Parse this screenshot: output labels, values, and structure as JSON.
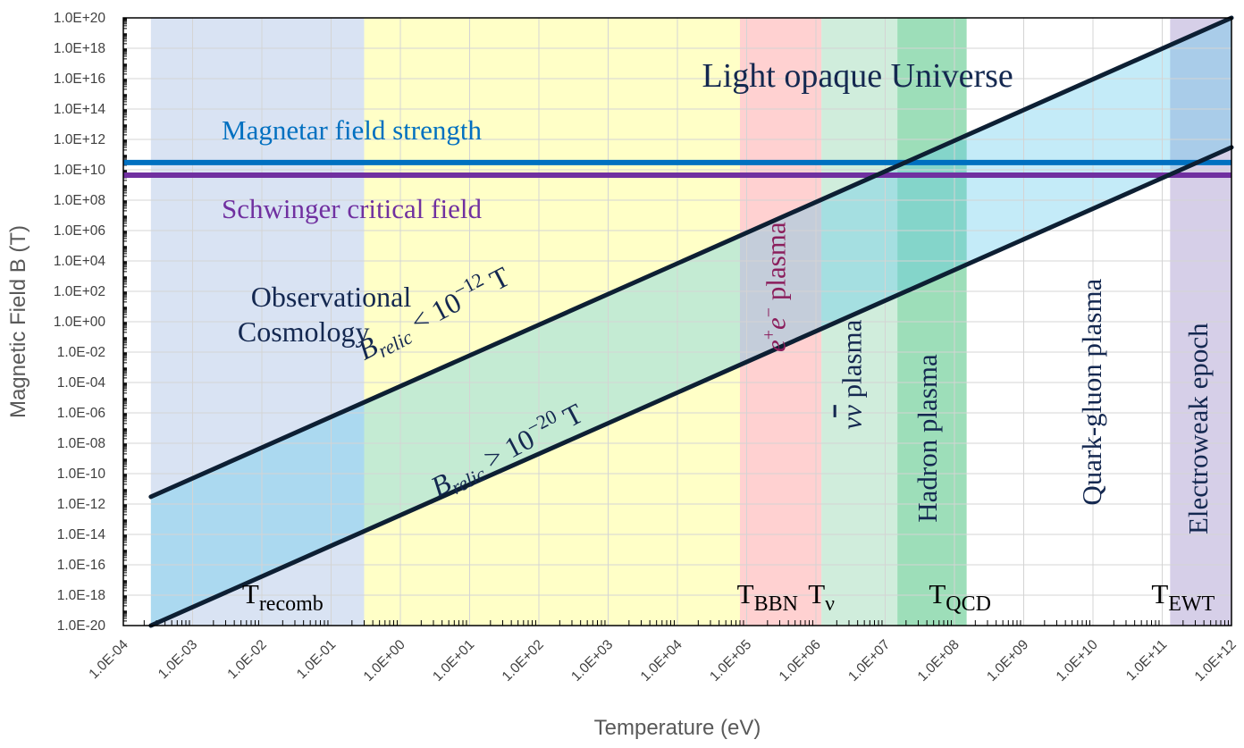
{
  "chart_data": {
    "type": "line",
    "xlabel": "Temperature (eV)",
    "ylabel": "Magnetic Field B (T)",
    "x_scale": "log",
    "y_scale": "log",
    "xlim": [
      "1.0E-04",
      "1.0E+12"
    ],
    "ylim": [
      "1.0E-20",
      "1.0E+20"
    ],
    "grid": true,
    "x_ticks": [
      "1.0E-04",
      "1.0E-03",
      "1.0E-02",
      "1.0E-01",
      "1.0E+00",
      "1.0E+01",
      "1.0E+02",
      "1.0E+03",
      "1.0E+04",
      "1.0E+05",
      "1.0E+06",
      "1.0E+07",
      "1.0E+08",
      "1.0E+09",
      "1.0E+10",
      "1.0E+11",
      "1.0E+12"
    ],
    "y_ticks": [
      "1.0E+20",
      "1.0E+18",
      "1.0E+16",
      "1.0E+14",
      "1.0E+12",
      "1.0E+10",
      "1.0E+08",
      "1.0E+06",
      "1.0E+04",
      "1.0E+02",
      "1.0E+00",
      "1.0E-02",
      "1.0E-04",
      "1.0E-06",
      "1.0E-08",
      "1.0E-10",
      "1.0E-12",
      "1.0E-14",
      "1.0E-16",
      "1.0E-18",
      "1.0E-20"
    ],
    "series": [
      {
        "x": [
          0.00025,
          1000000000000.0
        ],
        "y": [
          3e-12,
          1e+20
        ],
        "color": "#0d1f33"
      },
      {
        "x": [
          0.00025,
          1000000000000.0
        ],
        "y": [
          1e-20,
          300000000000.0
        ],
        "color": "#0d1f33"
      }
    ],
    "horizontal_lines": [
      {
        "label": "Magnetar field strength",
        "y": 30000000000.0,
        "color": "#0070c0"
      },
      {
        "label": "Schwinger critical field",
        "y": 4400000000.0,
        "color": "#7030a0"
      }
    ],
    "regions": [
      {
        "x": [
          0.00025,
          0.3
        ],
        "color": "#b4c7e7",
        "opacity": 0.5
      },
      {
        "x": [
          0.3,
          80000.0
        ],
        "color": "#ffff99",
        "opacity": 0.55
      },
      {
        "x": [
          80000.0,
          1200000.0
        ],
        "color": "#ff9999",
        "opacity": 0.45
      },
      {
        "x": [
          1200000.0,
          15000000.0
        ],
        "color": "#a9dfbf",
        "opacity": 0.55
      },
      {
        "x": [
          15000000.0,
          150000000.0
        ],
        "color": "#5cc88a",
        "opacity": 0.6
      },
      {
        "x": [
          130000000000.0,
          1000000000000.0
        ],
        "color": "#b4a7d6",
        "opacity": 0.55
      }
    ],
    "band_fill": "#55c6ea",
    "band_opacity": 0.35,
    "epoch_labels": [
      {
        "text": "Observational",
        "x": 0.1,
        "y": 10.0
      },
      {
        "text": "Cosmology",
        "x": 0.04,
        "y": 0.05
      },
      {
        "text": "Light opaque Universe",
        "x": 4000000.0,
        "y": 3000000000000000.0
      },
      {
        "text": "Quark-gluon plasma",
        "x": 13000000000.0,
        "y": 8e-13
      },
      {
        "text": "Electroweak epoch",
        "x": 450000000000.0,
        "y": 1e-14
      },
      {
        "text": "Hadron plasma",
        "x": 55000000.0,
        "y": 6e-14
      },
      {
        "text": "plasma",
        "x": 360000.0,
        "y": 0.01
      },
      {
        "text": "plasma",
        "x": 4500000.0,
        "y": 8e-08
      }
    ],
    "band_labels": [
      {
        "text": "< 10",
        "exponent": "−12",
        "unit": "T",
        "x": 3.5,
        "y": 1.0,
        "angle": -27.7
      },
      {
        "text": "> 10",
        "exponent": "−20",
        "unit": "T",
        "x": 40,
        "y": 1e-09,
        "angle": -27.7
      }
    ],
    "b_symbol": "B",
    "b_subscript": "relic",
    "temperature_markers": [
      {
        "main": "T",
        "sub": "recomb",
        "x": 0.02,
        "y": 3e-19
      },
      {
        "main": "T",
        "sub": "BBN",
        "x": 200000.0,
        "y": 3e-19
      },
      {
        "main": "T",
        "sub": "ν",
        "x": 1200000.0,
        "y": 3e-19
      },
      {
        "main": "T",
        "sub": "QCD",
        "x": 120000000.0,
        "y": 3e-19
      },
      {
        "main": "T",
        "sub": "EWT",
        "x": 200000000000.0,
        "y": 3e-19
      }
    ],
    "math_labels": {
      "ee_base1": "e",
      "ee_sup1": "+",
      "ee_base2": "e",
      "ee_sup2": "−",
      "nu1": "ν",
      "nu2": "ν"
    }
  }
}
